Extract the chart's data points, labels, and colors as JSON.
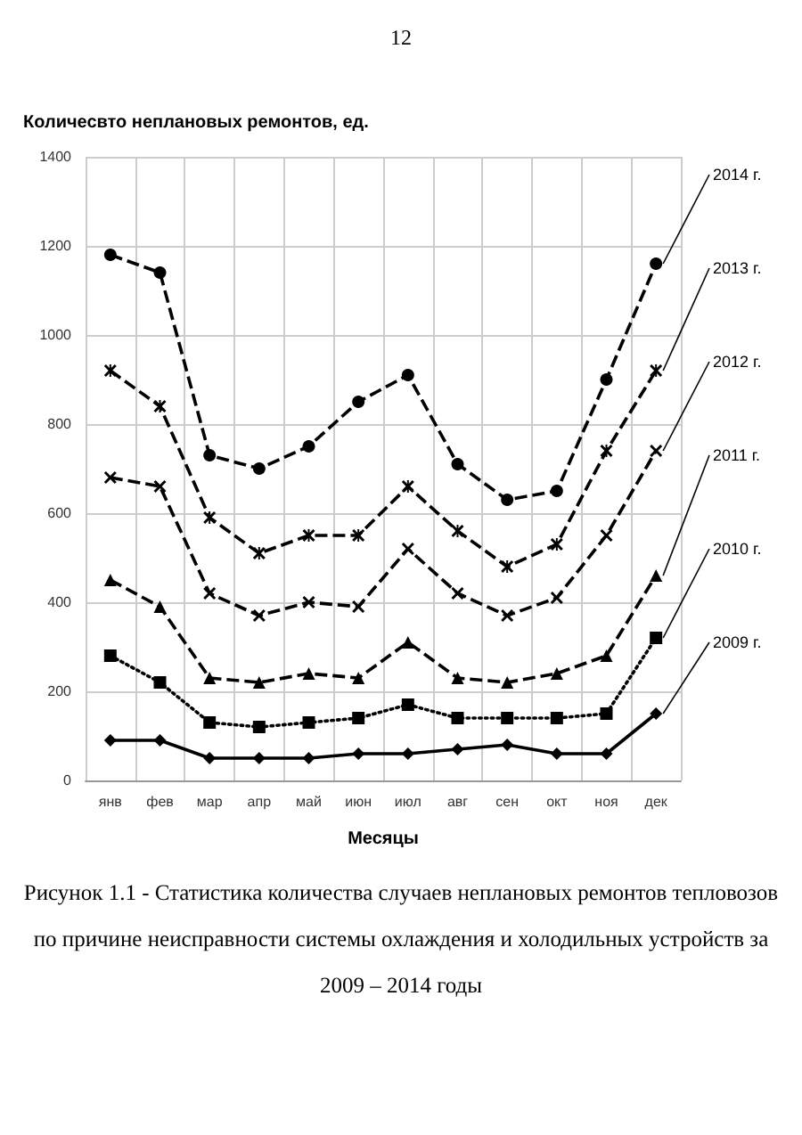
{
  "chart_data": {
    "type": "line",
    "ylabel": "Количесвто неплановых ремонтов, ед.",
    "xlabel": "Месяцы",
    "categories": [
      "янв",
      "фев",
      "мар",
      "апр",
      "май",
      "июн",
      "июл",
      "авг",
      "сен",
      "окт",
      "ноя",
      "дек"
    ],
    "series": [
      {
        "name": "2014 г.",
        "color": "#000000",
        "marker": "circle",
        "line_style": "dashed",
        "values": [
          1180,
          1140,
          730,
          700,
          750,
          850,
          910,
          710,
          630,
          650,
          900,
          1160
        ]
      },
      {
        "name": "2013 г.",
        "color": "#000000",
        "marker": "star",
        "line_style": "dashed",
        "values": [
          920,
          840,
          590,
          510,
          550,
          550,
          660,
          560,
          480,
          530,
          740,
          920
        ]
      },
      {
        "name": "2012 г.",
        "color": "#000000",
        "marker": "cross",
        "line_style": "dashed",
        "values": [
          680,
          660,
          420,
          370,
          400,
          390,
          520,
          420,
          370,
          410,
          550,
          740
        ]
      },
      {
        "name": "2011 г.",
        "color": "#000000",
        "marker": "triangle",
        "line_style": "dashed",
        "values": [
          450,
          390,
          230,
          220,
          240,
          230,
          310,
          230,
          220,
          240,
          280,
          460
        ]
      },
      {
        "name": "2010 г.",
        "color": "#000000",
        "marker": "square",
        "line_style": "dotted",
        "values": [
          280,
          220,
          130,
          120,
          130,
          140,
          170,
          140,
          140,
          140,
          150,
          320
        ]
      },
      {
        "name": "2009 г.",
        "color": "#000000",
        "marker": "diamond",
        "line_style": "solid",
        "values": [
          90,
          90,
          50,
          50,
          50,
          60,
          60,
          70,
          80,
          60,
          60,
          150
        ]
      }
    ],
    "ylim": [
      0,
      1400
    ],
    "yticks": [
      0,
      200,
      400,
      600,
      800,
      1000,
      1200,
      1400
    ],
    "grid": true,
    "annotations": [
      "12",
      "Рисунок 1.1 - Статистика количества случаев неплановых ремонтов тепловозов по причине неисправности системы охлаждения и холодильных устройств за 2009 – 2014 годы"
    ]
  }
}
